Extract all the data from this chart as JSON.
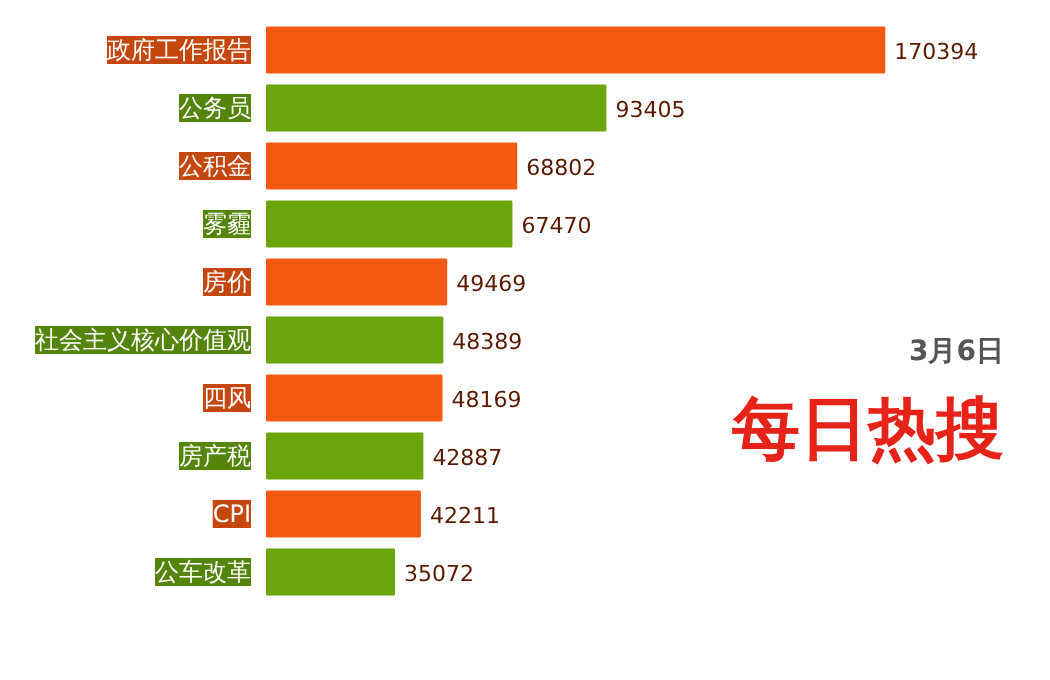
{
  "chart_data": {
    "type": "bar",
    "orientation": "horizontal",
    "title": "每日热搜",
    "subtitle": "3月6日",
    "categories": [
      "政府工作报告",
      "公务员",
      "公积金",
      "雾霾",
      "房价",
      "社会主义核心价值观",
      "四风",
      "房产税",
      "CPI",
      "公车改革"
    ],
    "values": [
      170394,
      93405,
      68802,
      67470,
      49469,
      48389,
      48169,
      42887,
      42211,
      35072
    ],
    "colors": [
      "#f55a12",
      "#6aa50c",
      "#f55a12",
      "#6aa50c",
      "#f55a12",
      "#6aa50c",
      "#f55a12",
      "#6aa50c",
      "#f55a12",
      "#6aa50c"
    ],
    "data_labels": true
  }
}
